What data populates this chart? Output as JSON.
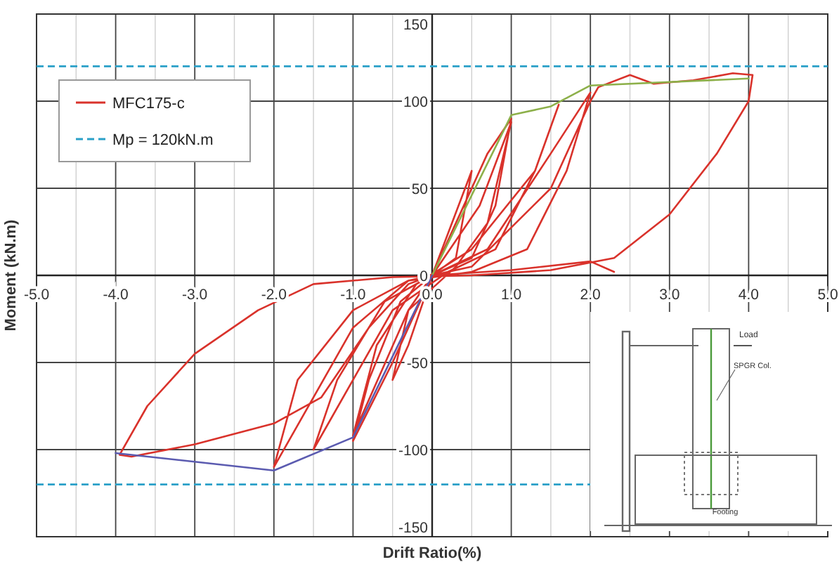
{
  "chart_data": {
    "type": "line",
    "xlabel": "Drift Ratio(%)",
    "ylabel": "Moment (kN.m)",
    "xlim": [
      -5,
      5
    ],
    "ylim": [
      -150,
      150
    ],
    "xticks": [
      {
        "value": -5,
        "label": "-5.0"
      },
      {
        "value": -4.5,
        "label": null
      },
      {
        "value": -4,
        "label": "-4.0"
      },
      {
        "value": -3.5,
        "label": null
      },
      {
        "value": -3,
        "label": "-3.0"
      },
      {
        "value": -2.5,
        "label": null
      },
      {
        "value": -2,
        "label": "-2.0"
      },
      {
        "value": -1.5,
        "label": null
      },
      {
        "value": -1,
        "label": "-1.0"
      },
      {
        "value": -0.5,
        "label": null
      },
      {
        "value": 0,
        "label": "0.0"
      },
      {
        "value": 0.5,
        "label": null
      },
      {
        "value": 1,
        "label": "1.0"
      },
      {
        "value": 1.5,
        "label": null
      },
      {
        "value": 2,
        "label": "2.0"
      },
      {
        "value": 2.5,
        "label": null
      },
      {
        "value": 3,
        "label": "3.0"
      },
      {
        "value": 3.5,
        "label": null
      },
      {
        "value": 4,
        "label": "4.0"
      },
      {
        "value": 4.5,
        "label": null
      },
      {
        "value": 5,
        "label": "5.0"
      }
    ],
    "yticks": [
      -150,
      -100,
      -50,
      0,
      50,
      100,
      150
    ],
    "grid": true,
    "legend": "top left",
    "marker": "none",
    "line_style": "solid",
    "series": [
      {
        "name": "MFC175-c",
        "color": "#d9322b",
        "x": [
          0,
          0.5,
          0.3,
          0,
          -0.3,
          -0.5,
          -0.3,
          0,
          0.3,
          0.7,
          1.0,
          0.8,
          0.5,
          0,
          -0.5,
          -1.0,
          -0.8,
          -0.4,
          0,
          0.6,
          1.0,
          0.7,
          0.3,
          -0.3,
          -1.0,
          -0.7,
          -0.2,
          0.5,
          1.3,
          1.6,
          1.3,
          0.8,
          0.2,
          -0.5,
          -1.5,
          -1.2,
          -0.6,
          0,
          0.7,
          1.5,
          2.0,
          1.7,
          1.2,
          0.5,
          -0.3,
          -1.0,
          -2.0,
          -1.7,
          -1.0,
          -0.3,
          0.5,
          1.5,
          2.0,
          2.1,
          2.5,
          2.8,
          3.3,
          3.8,
          4.05,
          4.0,
          3.6,
          3.0,
          2.3,
          1.5,
          0.5,
          -0.5,
          -1.5,
          -2.2,
          -3.0,
          -3.6,
          -3.95,
          -3.8,
          -3.0,
          -2.0,
          -1.4,
          -0.8,
          -0.3,
          0,
          1.0,
          2.0,
          2.3
        ],
        "values": [
          0,
          60,
          10,
          0,
          -40,
          -60,
          -20,
          0,
          30,
          70,
          90,
          40,
          10,
          0,
          -50,
          -95,
          -60,
          -15,
          0,
          40,
          88,
          30,
          5,
          -20,
          -92,
          -40,
          -5,
          15,
          60,
          98,
          60,
          15,
          2,
          -20,
          -100,
          -60,
          -15,
          0,
          15,
          70,
          105,
          60,
          15,
          2,
          -3,
          -30,
          -110,
          -60,
          -20,
          -3,
          5,
          50,
          100,
          108,
          115,
          110,
          112,
          116,
          115,
          100,
          70,
          35,
          10,
          3,
          0,
          -1,
          -5,
          -20,
          -45,
          -75,
          -103,
          -104,
          -97,
          -85,
          -70,
          -30,
          -5,
          0,
          3,
          8,
          2
        ]
      },
      {
        "color": "#8db04a",
        "x": [
          0,
          1.0,
          1.5,
          2.0,
          4.0
        ],
        "values": [
          0,
          92,
          97,
          109,
          113
        ]
      },
      {
        "color": "#5b5bb0",
        "x": [
          0,
          -1.0,
          -2.0,
          -4.0
        ],
        "values": [
          0,
          -93,
          -112,
          -102
        ]
      }
    ],
    "ref_lines": [
      {
        "axis": "y",
        "value": 120,
        "label": "Mp = 120kN.m",
        "color": "#2aa0c8",
        "line_style": "dashed"
      },
      {
        "axis": "y",
        "value": -120,
        "color": "#2aa0c8",
        "line_style": "dashed"
      }
    ],
    "annotations": [
      "Load",
      "SPGR Col.",
      "Footing"
    ]
  }
}
